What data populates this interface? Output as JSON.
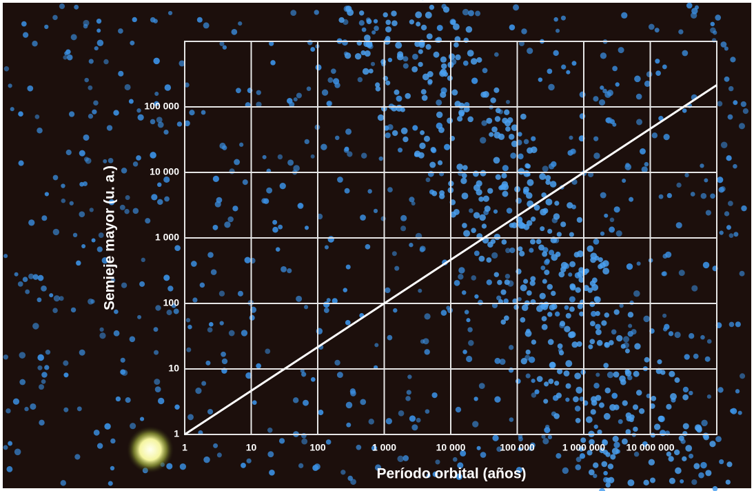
{
  "chart_data": {
    "type": "line",
    "x_label": "Período orbital (años)",
    "y_label": "Semieje mayor (u. a.)",
    "xscale": "log",
    "yscale": "log",
    "xlim": [
      1,
      100000000
    ],
    "ylim": [
      1,
      1000000
    ],
    "xticks": [
      1,
      10,
      100,
      {
        "value": 1000,
        "label": "1 000"
      },
      {
        "value": 10000,
        "label": "10 000"
      },
      {
        "value": 100000,
        "label": "100 000"
      },
      {
        "value": 1000000,
        "label": "1 000 000"
      },
      {
        "value": 10000000,
        "label": "10 000 000"
      }
    ],
    "yticks": [
      1,
      10,
      100,
      {
        "value": 1000,
        "label": "1 000"
      },
      {
        "value": 10000,
        "label": "10 000"
      },
      {
        "value": 100000,
        "label": "100 000"
      }
    ],
    "grid": true,
    "series": [
      {
        "color": "#ffffff",
        "x": [
          1,
          1000,
          1000000,
          100000000
        ],
        "values": [
          1,
          100,
          10000,
          215443
        ]
      }
    ]
  }
}
